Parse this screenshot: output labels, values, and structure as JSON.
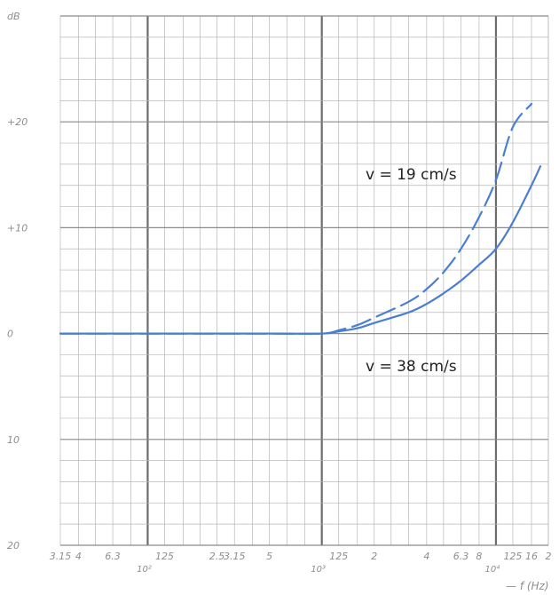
{
  "chart_data": {
    "type": "line",
    "xscale": "log",
    "xlim": [
      31.5,
      20000
    ],
    "ylim": [
      -20,
      30
    ],
    "x_ticks": [
      {
        "value": 31.5,
        "label": "3.15"
      },
      {
        "value": 40,
        "label": "4"
      },
      {
        "value": 63,
        "label": "6.3"
      },
      {
        "value": 125,
        "label": "125"
      },
      {
        "value": 250,
        "label": "2.5"
      },
      {
        "value": 315,
        "label": "3.15"
      },
      {
        "value": 500,
        "label": "5"
      },
      {
        "value": 1250,
        "label": "125"
      },
      {
        "value": 2000,
        "label": "2"
      },
      {
        "value": 4000,
        "label": "4"
      },
      {
        "value": 6300,
        "label": "6.3"
      },
      {
        "value": 8000,
        "label": "8"
      },
      {
        "value": 12500,
        "label": "125"
      },
      {
        "value": 16000,
        "label": "16"
      },
      {
        "value": 20000,
        "label": "2"
      }
    ],
    "x_decade_labels": [
      {
        "value": 100,
        "label": "10²"
      },
      {
        "value": 1000,
        "label": "10³"
      },
      {
        "value": 10000,
        "label": "10⁴"
      }
    ],
    "xlabel": "— f (Hz)",
    "ylabel": "dB",
    "y_ticks": [
      {
        "value": 20,
        "label": "+20"
      },
      {
        "value": 10,
        "label": "+10"
      },
      {
        "value": 0,
        "label": "0"
      },
      {
        "value": -10,
        "label": "10"
      },
      {
        "value": -20,
        "label": "20"
      }
    ],
    "grid": true,
    "series": [
      {
        "name": "v = 19 cm/s",
        "style": "dashed",
        "color": "#4a7fd0",
        "x": [
          31.5,
          100,
          500,
          1000,
          1250,
          1600,
          2000,
          3150,
          4000,
          5000,
          6300,
          8000,
          10000,
          12500,
          16000
        ],
        "y": [
          0,
          0,
          0,
          0,
          0.3,
          0.8,
          1.5,
          3.0,
          4.2,
          5.8,
          8.0,
          11.0,
          14.5,
          19.5,
          21.7
        ]
      },
      {
        "name": "v = 38 cm/s",
        "style": "solid",
        "color": "#4a7fd0",
        "x": [
          31.5,
          100,
          500,
          1000,
          1250,
          1600,
          2000,
          3150,
          4000,
          5000,
          6300,
          8000,
          10000,
          12500,
          16000,
          18000
        ],
        "y": [
          0,
          0,
          0,
          0,
          0.2,
          0.5,
          1.0,
          2.0,
          2.8,
          3.8,
          5.0,
          6.5,
          8.0,
          10.5,
          14.0,
          15.8
        ]
      }
    ]
  }
}
